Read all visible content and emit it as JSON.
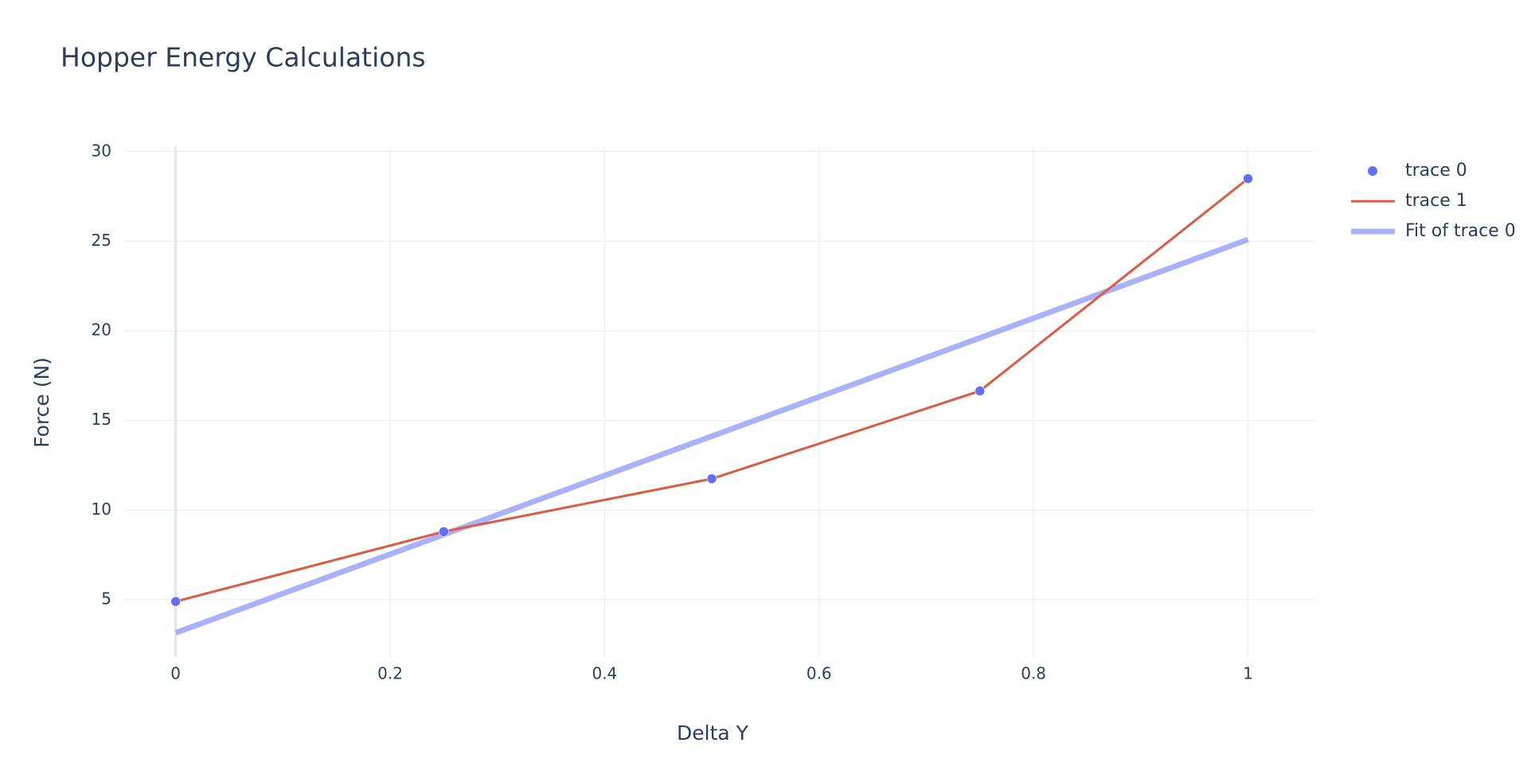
{
  "chart_data": {
    "type": "line",
    "title": "Hopper Energy Calculations",
    "x_label": "Delta Y",
    "y_label": "Force (N)",
    "series": [
      {
        "name": "trace 0",
        "mode": "markers",
        "color": "#636efa",
        "x": [
          0,
          0.25,
          0.5,
          0.75,
          1
        ],
        "values": [
          4.9,
          8.8,
          11.75,
          16.65,
          28.5
        ]
      },
      {
        "name": "trace 1",
        "mode": "lines",
        "color": "#dd5b40",
        "x": [
          0,
          0.25,
          0.5,
          0.75,
          1
        ],
        "values": [
          4.9,
          8.8,
          11.75,
          16.65,
          28.5
        ]
      },
      {
        "name": "Fit of trace 0",
        "mode": "lines",
        "color": "#aab1f8",
        "width": 7,
        "x": [
          0,
          1
        ],
        "values": [
          3.15,
          25.1
        ]
      }
    ],
    "xlim": [
      -0.048,
      1.062
    ],
    "xticks": [
      0,
      0.2,
      0.4,
      0.6,
      0.8,
      1
    ],
    "ylim": [
      1.8,
      30.3
    ],
    "yticks": [
      5,
      10,
      15,
      20,
      25,
      30
    ],
    "grid": true,
    "legend": "right"
  }
}
